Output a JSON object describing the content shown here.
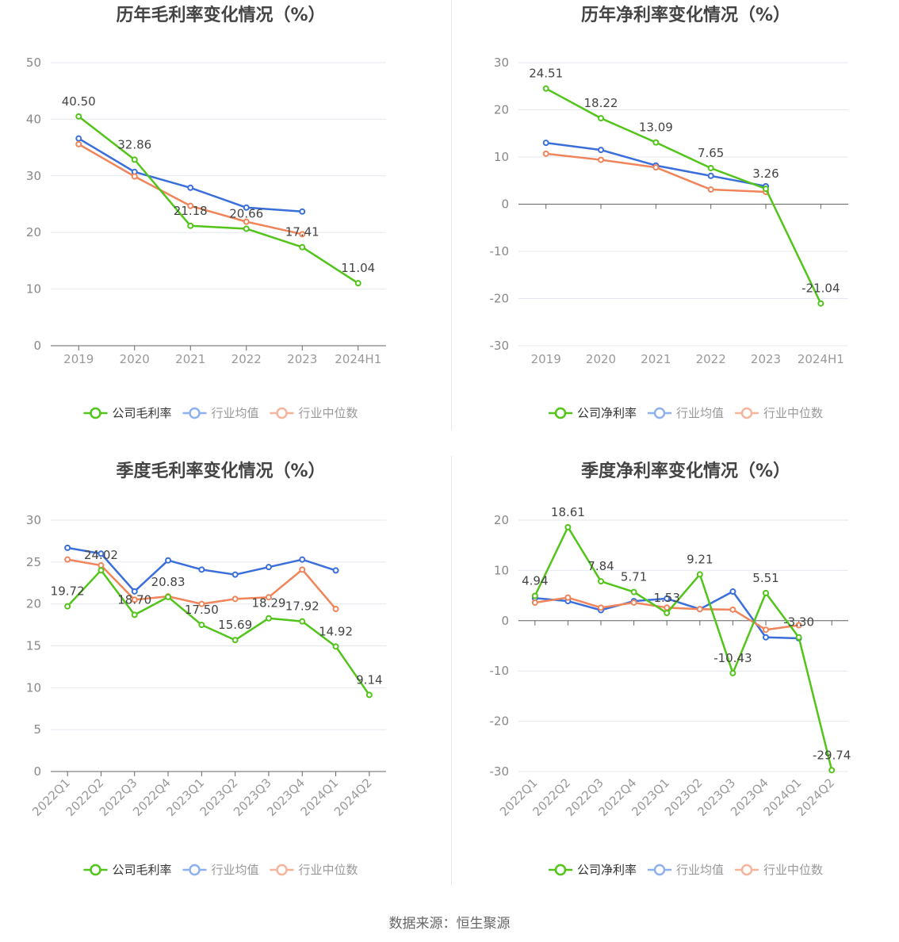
{
  "charts": [
    {
      "type": "line",
      "title": "历年毛利率变化情况（%）",
      "categories": [
        "2019",
        "2020",
        "2021",
        "2022",
        "2023",
        "2024H1"
      ],
      "ylim": [
        0,
        50
      ],
      "yticks": [
        0,
        10,
        20,
        30,
        40,
        50
      ],
      "series": [
        {
          "name": "公司毛利率",
          "color": "#52c41a",
          "values": [
            40.5,
            32.86,
            21.18,
            20.66,
            17.41,
            11.04
          ],
          "labels": [
            "40.50",
            "32.86",
            "21.18",
            "20.66",
            "17.41",
            "11.04"
          ]
        },
        {
          "name": "行业均值",
          "color": "#3a6fdb",
          "values": [
            36.6,
            30.7,
            27.9,
            24.4,
            23.7,
            null
          ]
        },
        {
          "name": "行业中位数",
          "color": "#f0845a",
          "values": [
            35.6,
            29.9,
            24.7,
            21.9,
            19.7,
            null
          ]
        }
      ],
      "rotate_xlabels": false
    },
    {
      "type": "line",
      "title": "历年净利率变化情况（%）",
      "categories": [
        "2019",
        "2020",
        "2021",
        "2022",
        "2023",
        "2024H1"
      ],
      "ylim": [
        -30,
        30
      ],
      "yticks": [
        -30,
        -20,
        -10,
        0,
        10,
        20,
        30
      ],
      "series": [
        {
          "name": "公司净利率",
          "color": "#52c41a",
          "values": [
            24.51,
            18.22,
            13.09,
            7.65,
            3.26,
            -21.04
          ],
          "labels": [
            "24.51",
            "18.22",
            "13.09",
            "7.65",
            "3.26",
            "-21.04"
          ]
        },
        {
          "name": "行业均值",
          "color": "#3a6fdb",
          "values": [
            13.0,
            11.5,
            8.2,
            6.0,
            3.8,
            null
          ]
        },
        {
          "name": "行业中位数",
          "color": "#f0845a",
          "values": [
            10.7,
            9.4,
            7.8,
            3.1,
            2.6,
            null
          ]
        }
      ],
      "rotate_xlabels": false
    },
    {
      "type": "line",
      "title": "季度毛利率变化情况（%）",
      "categories": [
        "2022Q1",
        "2022Q2",
        "2022Q3",
        "2022Q4",
        "2023Q1",
        "2023Q2",
        "2023Q3",
        "2023Q4",
        "2024Q1",
        "2024Q2"
      ],
      "ylim": [
        0,
        30
      ],
      "yticks": [
        0,
        5,
        10,
        15,
        20,
        25,
        30
      ],
      "series": [
        {
          "name": "公司毛利率",
          "color": "#52c41a",
          "values": [
            19.72,
            24.02,
            18.7,
            20.83,
            17.5,
            15.69,
            18.29,
            17.92,
            14.92,
            9.14
          ],
          "labels": [
            "19.72",
            "24.02",
            "18.70",
            "20.83",
            "17.50",
            "15.69",
            "18.29",
            "17.92",
            "14.92",
            "9.14"
          ]
        },
        {
          "name": "行业均值",
          "color": "#3a6fdb",
          "values": [
            26.7,
            26.0,
            21.5,
            25.2,
            24.1,
            23.5,
            24.4,
            25.3,
            24.0,
            null
          ]
        },
        {
          "name": "行业中位数",
          "color": "#f0845a",
          "values": [
            25.3,
            24.6,
            20.5,
            20.9,
            20.0,
            20.6,
            20.8,
            24.1,
            19.4,
            null
          ]
        }
      ],
      "rotate_xlabels": true
    },
    {
      "type": "line",
      "title": "季度净利率变化情况（%）",
      "categories": [
        "2022Q1",
        "2022Q2",
        "2022Q3",
        "2022Q4",
        "2023Q1",
        "2023Q2",
        "2023Q3",
        "2023Q4",
        "2024Q1",
        "2024Q2"
      ],
      "ylim": [
        -30,
        20
      ],
      "yticks": [
        -30,
        -20,
        -10,
        0,
        10,
        20
      ],
      "series": [
        {
          "name": "公司净利率",
          "color": "#52c41a",
          "values": [
            4.94,
            18.61,
            7.84,
            5.71,
            1.53,
            9.21,
            -10.43,
            5.51,
            -3.3,
            -29.74
          ],
          "labels": [
            "4.94",
            "18.61",
            "7.84",
            "5.71",
            "1.53",
            "9.21",
            "-10.43",
            "5.51",
            "-3.30",
            "-29.74"
          ]
        },
        {
          "name": "行业均值",
          "color": "#3a6fdb",
          "values": [
            4.5,
            3.9,
            2.1,
            3.9,
            4.4,
            2.3,
            5.8,
            -3.3,
            -3.5,
            null
          ]
        },
        {
          "name": "行业中位数",
          "color": "#f0845a",
          "values": [
            3.6,
            4.6,
            2.6,
            3.6,
            2.6,
            2.3,
            2.2,
            -1.8,
            -0.9,
            null
          ]
        }
      ],
      "rotate_xlabels": true
    }
  ],
  "source": "数据来源：恒生聚源"
}
